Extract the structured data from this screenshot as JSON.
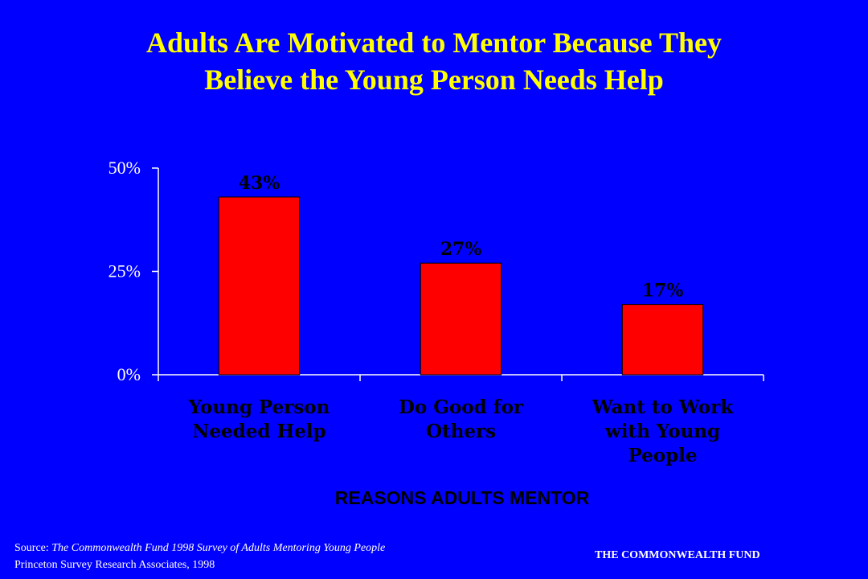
{
  "title": {
    "line1": "Adults Are Motivated to Mentor Because They",
    "line2": "Believe the Young Person Needs Help"
  },
  "chart_data": {
    "type": "bar",
    "categories": [
      [
        "Young Person",
        "Needed Help"
      ],
      [
        "Do Good for",
        "Others"
      ],
      [
        "Want to Work",
        "with Young",
        "People"
      ]
    ],
    "values": [
      43,
      27,
      17
    ],
    "data_labels": [
      "43%",
      "27%",
      "17%"
    ],
    "xlabel": "REASONS ADULTS MENTOR",
    "ylabel": "",
    "ylim": [
      0,
      50
    ],
    "yticks": [
      0,
      25,
      50
    ],
    "ytick_labels": [
      "0%",
      "25%",
      "50%"
    ],
    "grid": false,
    "legend": "none",
    "bar_color": "#ff0000"
  },
  "colors": {
    "background": "#0000ff",
    "title": "#ffff00",
    "bar": "#ff0000",
    "axis": "#ffffff"
  },
  "source": {
    "prefix": "Source: ",
    "italic": "The Commonwealth Fund 1998 Survey of Adults Mentoring Young People",
    "line2": "Princeton Survey Research Associates, 1998"
  },
  "footer_brand": "THE COMMONWEALTH FUND"
}
